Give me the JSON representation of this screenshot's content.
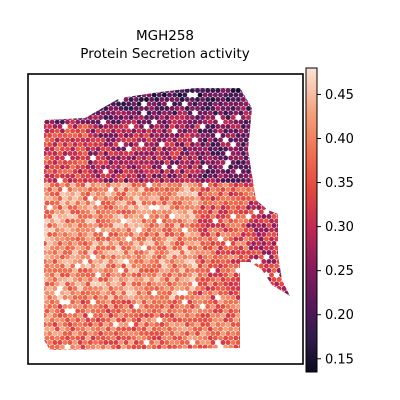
{
  "chart_data": {
    "type": "heatmap",
    "subtype": "spatial-hexbin",
    "title_line1": "MGH258",
    "title_line2": "Protein Secretion activity",
    "xlabel": "",
    "ylabel": "",
    "colormap": "rocket",
    "colorbar": {
      "range": [
        0.135,
        0.48
      ],
      "ticks": [
        0.15,
        0.2,
        0.25,
        0.3,
        0.35,
        0.4,
        0.45
      ],
      "tick_labels": [
        "0.15",
        "0.20",
        "0.25",
        "0.30",
        "0.35",
        "0.40",
        "0.45"
      ]
    },
    "grid": false,
    "legend": "colorbar-right",
    "regions": {
      "top_band_value": 0.2,
      "upper_middle_value": 0.28,
      "left_lower_value": 0.41,
      "bottom_value": 0.38,
      "right_protrusion_value": 0.31
    }
  }
}
